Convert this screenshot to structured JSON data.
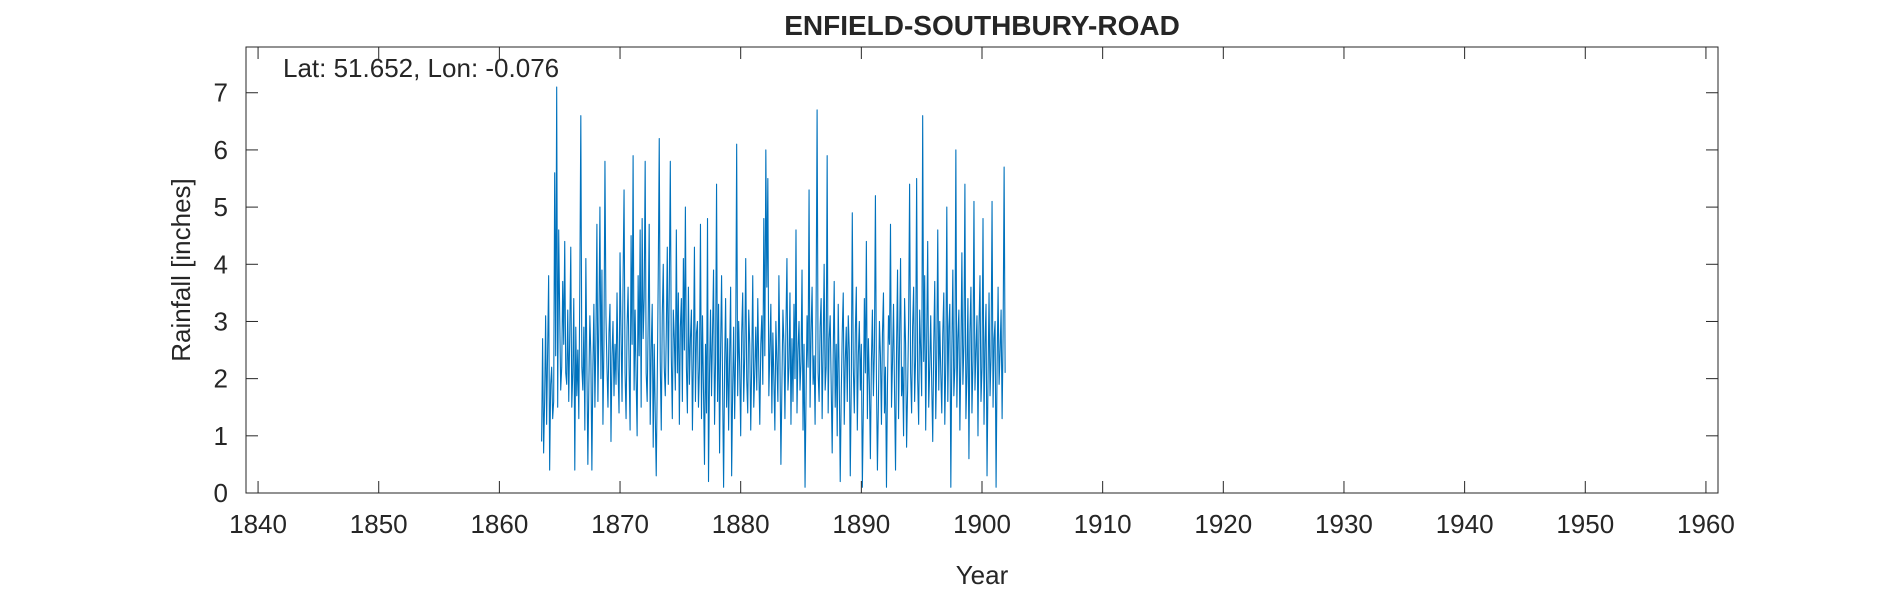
{
  "chart_data": {
    "type": "line",
    "title": "ENFIELD-SOUTHBURY-ROAD",
    "xlabel": "Year",
    "ylabel": "Rainfall [inches]",
    "annotation": "Lat: 51.652, Lon: -0.076",
    "xlim": [
      1839,
      1961
    ],
    "ylim": [
      0,
      7.8
    ],
    "xticks": [
      1840,
      1850,
      1860,
      1870,
      1880,
      1890,
      1900,
      1910,
      1920,
      1930,
      1940,
      1950,
      1960
    ],
    "yticks": [
      0,
      1,
      2,
      3,
      4,
      5,
      6,
      7
    ],
    "grid": false,
    "series": [
      {
        "color": "#0072BD",
        "x_start": 1863.5,
        "x_step": 0.0833333,
        "values": [
          0.9,
          2.7,
          0.7,
          1.6,
          3.1,
          1.2,
          2.5,
          3.8,
          0.4,
          1.9,
          2.2,
          1.3,
          1.6,
          5.6,
          2.4,
          7.1,
          1.5,
          4.6,
          3.1,
          1.8,
          2.2,
          3.7,
          2.6,
          4.4,
          2.1,
          1.9,
          3.2,
          1.6,
          2.8,
          4.3,
          1.5,
          2.1,
          3.4,
          0.4,
          2.9,
          1.7,
          2.5,
          1.3,
          3.6,
          6.6,
          2.2,
          1.8,
          2.9,
          1.1,
          4.1,
          2.3,
          0.5,
          1.9,
          3.1,
          2.4,
          0.4,
          2.2,
          3.3,
          1.5,
          2.7,
          4.7,
          1.6,
          3.0,
          5.0,
          2.0,
          3.9,
          1.2,
          2.6,
          5.8,
          3.1,
          2.2,
          1.5,
          2.8,
          3.3,
          0.9,
          2.4,
          3.0,
          1.7,
          2.6,
          1.9,
          3.5,
          2.2,
          1.4,
          4.2,
          2.8,
          1.6,
          3.7,
          5.3,
          2.1,
          1.3,
          2.9,
          3.6,
          2.2,
          1.1,
          4.5,
          2.6,
          5.9,
          1.8,
          3.2,
          2.0,
          1.0,
          3.8,
          2.4,
          4.6,
          1.5,
          4.8,
          2.7,
          3.4,
          5.8,
          2.1,
          1.6,
          3.0,
          4.7,
          1.2,
          2.5,
          3.3,
          0.8,
          2.6,
          1.4,
          0.3,
          1.9,
          3.8,
          6.2,
          2.3,
          1.1,
          3.1,
          4.0,
          2.2,
          1.7,
          2.8,
          4.3,
          1.9,
          3.6,
          5.8,
          2.4,
          1.3,
          3.2,
          2.7,
          1.8,
          4.6,
          2.1,
          3.5,
          1.2,
          2.9,
          3.4,
          1.6,
          4.1,
          2.5,
          5.0,
          2.2,
          1.4,
          3.6,
          1.9,
          2.7,
          3.2,
          1.1,
          2.4,
          4.3,
          1.6,
          2.8,
          3.0,
          1.5,
          2.2,
          4.7,
          1.3,
          3.1,
          1.8,
          0.5,
          2.6,
          1.4,
          4.8,
          0.2,
          2.1,
          3.2,
          1.7,
          2.8,
          3.9,
          1.2,
          2.3,
          5.4,
          1.6,
          3.3,
          0.7,
          2.5,
          3.8,
          1.9,
          0.1,
          2.2,
          3.4,
          1.5,
          2.7,
          1.1,
          2.4,
          3.6,
          0.3,
          1.8,
          2.9,
          1.3,
          2.5,
          6.1,
          1.7,
          3.0,
          2.2,
          1.0,
          2.8,
          3.5,
          1.6,
          2.4,
          4.1,
          2.0,
          1.4,
          3.2,
          2.6,
          1.1,
          2.3,
          3.8,
          1.5,
          2.1,
          2.9,
          1.8,
          3.4,
          2.2,
          1.2,
          2.6,
          3.1,
          1.9,
          4.8,
          2.4,
          6.0,
          3.6,
          5.5,
          1.7,
          2.5,
          3.3,
          1.4,
          2.8,
          2.0,
          1.1,
          3.0,
          2.3,
          1.6,
          3.8,
          2.4,
          0.5,
          1.9,
          3.2,
          2.6,
          1.3,
          2.9,
          4.1,
          1.8,
          2.2,
          3.5,
          1.2,
          2.7,
          1.6,
          3.3,
          2.0,
          4.6,
          1.4,
          2.5,
          3.0,
          1.8,
          2.3,
          3.9,
          1.1,
          2.6,
          0.1,
          1.7,
          3.1,
          2.2,
          5.3,
          1.5,
          2.8,
          3.6,
          1.9,
          2.4,
          1.2,
          3.2,
          6.7,
          2.1,
          1.6,
          2.9,
          3.4,
          1.3,
          2.5,
          4.0,
          1.8,
          2.2,
          5.9,
          1.4,
          2.7,
          3.1,
          1.9,
          0.7,
          2.4,
          3.7,
          1.5,
          2.6,
          1.0,
          3.3,
          2.0,
          0.2,
          1.7,
          2.8,
          3.5,
          1.2,
          2.3,
          2.9,
          1.6,
          3.1,
          2.5,
          0.3,
          1.9,
          4.9,
          2.2,
          1.4,
          2.8,
          3.6,
          1.1,
          2.4,
          3.0,
          1.8,
          2.6,
          0.1,
          1.5,
          3.4,
          2.1,
          4.4,
          1.3,
          2.7,
          1.9,
          0.6,
          2.3,
          3.2,
          1.7,
          2.5,
          5.2,
          2.0,
          0.4,
          1.6,
          3.0,
          2.4,
          1.2,
          2.8,
          3.5,
          1.4,
          2.2,
          0.1,
          1.9,
          3.1,
          2.6,
          4.7,
          1.5,
          2.3,
          3.3,
          1.8,
          0.4,
          2.5,
          3.9,
          1.3,
          2.7,
          4.1,
          1.7,
          2.2,
          1.0,
          3.4,
          2.6,
          0.8,
          1.8,
          3.0,
          5.4,
          2.1,
          1.4,
          2.9,
          3.6,
          1.6,
          2.4,
          5.5,
          2.0,
          1.2,
          3.2,
          2.5,
          1.7,
          6.6,
          2.3,
          3.8,
          1.1,
          2.7,
          4.4,
          1.5,
          2.2,
          3.1,
          1.9,
          0.9,
          2.6,
          3.7,
          1.3,
          2.4,
          4.6,
          1.8,
          3.0,
          2.1,
          1.4,
          2.8,
          3.5,
          1.2,
          2.3,
          5.0,
          1.6,
          2.9,
          3.3,
          0.1,
          2.5,
          3.9,
          1.7,
          2.2,
          6.0,
          1.5,
          2.7,
          3.2,
          1.1,
          2.4,
          4.2,
          1.9,
          2.6,
          5.4,
          1.3,
          2.1,
          3.4,
          0.6,
          2.8,
          3.6,
          1.4,
          2.3,
          5.1,
          1.8,
          2.5,
          3.1,
          1.0,
          2.9,
          3.8,
          1.6,
          2.2,
          4.8,
          1.2,
          2.6,
          3.3,
          0.3,
          2.0,
          3.5,
          1.7,
          2.4,
          5.1,
          1.5,
          2.7,
          3.0,
          0.1,
          2.2,
          3.6,
          1.9,
          2.5,
          3.2,
          1.3,
          2.8,
          5.7,
          2.1
        ]
      }
    ]
  }
}
